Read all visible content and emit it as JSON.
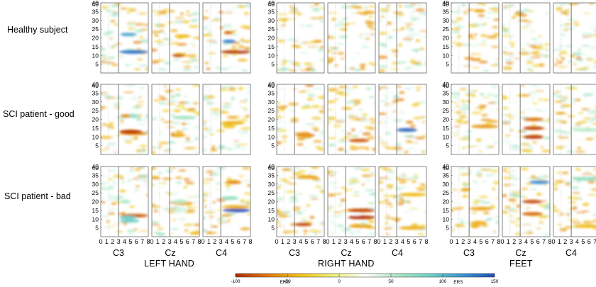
{
  "chart_data": {
    "type": "heatmap",
    "title": "",
    "rows": [
      "Healthy subject",
      "SCI patient - good",
      "SCI patient - bad"
    ],
    "groups": [
      {
        "name": "LEFT HAND",
        "channels": [
          "C3",
          "Cz",
          "C4"
        ]
      },
      {
        "name": "RIGHT HAND",
        "channels": [
          "C3",
          "Cz",
          "C4"
        ]
      },
      {
        "name": "FEET",
        "channels": [
          "C3",
          "Cz",
          "C4"
        ]
      }
    ],
    "x_ticks": [
      "0",
      "1",
      "2",
      "3",
      "4",
      "5",
      "6",
      "7",
      "8"
    ],
    "y_ticks": [
      "5",
      "10",
      "15",
      "20",
      "25",
      "30",
      "35",
      "40"
    ],
    "xlim": [
      0,
      8
    ],
    "ylim": [
      0,
      40
    ],
    "cue_time": 3,
    "colorbar": {
      "ticks": [
        "-100",
        "-50",
        "0",
        "50",
        "100",
        "150"
      ],
      "range": [
        -100,
        150
      ],
      "erd_label": "ERD",
      "ers_label": "ERS",
      "colors": [
        "#b22a00",
        "#e07a10",
        "#f1c21a",
        "#eef07a",
        "#ffffff",
        "#a9e6c2",
        "#6fd3c4",
        "#3a95d3",
        "#1f4fb8"
      ]
    },
    "features": [
      {
        "panel": [
          0,
          0
        ],
        "t0": 3.1,
        "t1": 8.0,
        "f": 12,
        "v": 135
      },
      {
        "panel": [
          0,
          0
        ],
        "t0": 3.3,
        "t1": 6.0,
        "f": 22,
        "v": 110
      },
      {
        "panel": [
          0,
          1
        ],
        "t0": 3.4,
        "t1": 5.4,
        "f": 10,
        "v": -80
      },
      {
        "panel": [
          0,
          1
        ],
        "t0": 3.8,
        "t1": 6.5,
        "f": 21,
        "v": -40
      },
      {
        "panel": [
          0,
          2
        ],
        "t0": 3.0,
        "t1": 8.0,
        "f": 12,
        "v": -95
      },
      {
        "panel": [
          0,
          2
        ],
        "t0": 3.3,
        "t1": 5.5,
        "f": 18,
        "v": 130
      },
      {
        "panel": [
          0,
          2
        ],
        "t0": 3.5,
        "t1": 5.0,
        "f": 23,
        "v": -70
      },
      {
        "panel": [
          1,
          0
        ],
        "t0": 3.3,
        "t1": 8.0,
        "f": 12,
        "v": -60
      },
      {
        "panel": [
          1,
          0
        ],
        "t0": 3.2,
        "t1": 7.0,
        "f": 13,
        "v": -85
      },
      {
        "panel": [
          1,
          0
        ],
        "t0": 3.8,
        "t1": 6.5,
        "f": 22,
        "v": 70
      },
      {
        "panel": [
          1,
          1
        ],
        "t0": 3.2,
        "t1": 5.5,
        "f": 11,
        "v": -75
      },
      {
        "panel": [
          1,
          1
        ],
        "t0": 3.5,
        "t1": 7.5,
        "f": 21,
        "v": 60
      },
      {
        "panel": [
          1,
          2
        ],
        "t0": 3.0,
        "t1": 7.0,
        "f": 18,
        "v": -45
      },
      {
        "panel": [
          2,
          0
        ],
        "t0": 3.2,
        "t1": 6.5,
        "f": 9,
        "v": 90
      },
      {
        "panel": [
          2,
          0
        ],
        "t0": 3.5,
        "t1": 8.0,
        "f": 12,
        "v": -80
      },
      {
        "panel": [
          2,
          1
        ],
        "t0": 3.6,
        "t1": 7.0,
        "f": 19,
        "v": -50
      },
      {
        "panel": [
          2,
          1
        ],
        "t0": 3.5,
        "t1": 6.0,
        "f": 15,
        "v": 40
      },
      {
        "panel": [
          2,
          2
        ],
        "t0": 3.3,
        "t1": 8.0,
        "f": 15,
        "v": 150
      },
      {
        "panel": [
          2,
          2
        ],
        "t0": 3.0,
        "t1": 6.0,
        "f": 22,
        "v": 70
      },
      {
        "panel": [
          2,
          2
        ],
        "t0": 3.8,
        "t1": 6.5,
        "f": 31,
        "v": -60
      },
      {
        "panel": [
          1,
          1,
          0
        ],
        "t0": 3.1,
        "t1": 6.5,
        "f": 11,
        "v": -60
      },
      {
        "panel": [
          1,
          1,
          1
        ],
        "t0": 3.5,
        "t1": 7.0,
        "f": 8,
        "v": -80
      },
      {
        "panel": [
          1,
          1,
          2
        ],
        "t0": 3.0,
        "t1": 6.5,
        "f": 14,
        "v": 140
      },
      {
        "panel": [
          1,
          2,
          0
        ],
        "t0": 3.1,
        "t1": 6.0,
        "f": 7,
        "v": -85
      },
      {
        "panel": [
          1,
          2,
          1
        ],
        "t0": 3.5,
        "t1": 7.5,
        "f": 6,
        "v": -50
      },
      {
        "panel": [
          1,
          2,
          2
        ],
        "t0": 3.3,
        "t1": 8.0,
        "f": 24,
        "v": -40
      },
      {
        "panel": [
          0,
          1,
          0
        ],
        "t0": 3.1,
        "t1": 6.8,
        "f": 13,
        "v": -95
      },
      {
        "panel": [
          0,
          1,
          0
        ],
        "t0": 3.3,
        "t1": 5.0,
        "f": 22,
        "v": -60
      },
      {
        "panel": [
          0,
          1,
          1
        ],
        "t0": 3.6,
        "t1": 5.4,
        "f": 11,
        "v": -45
      },
      {
        "panel": [
          0,
          1,
          2
        ],
        "t0": 3.3,
        "t1": 5.5,
        "f": 16,
        "v": -35
      },
      {
        "panel": [
          2,
          1,
          0
        ],
        "t0": 3.3,
        "t1": 8.0,
        "f": 16,
        "v": -55
      },
      {
        "panel": [
          2,
          1,
          1
        ],
        "t0": 3.5,
        "t1": 7.0,
        "f": 10,
        "v": -95
      },
      {
        "panel": [
          2,
          1,
          1
        ],
        "t0": 3.5,
        "t1": 7.0,
        "f": 15,
        "v": -90
      },
      {
        "panel": [
          2,
          1,
          1
        ],
        "t0": 3.5,
        "t1": 7.0,
        "f": 20,
        "v": -70
      },
      {
        "panel": [
          2,
          1,
          2
        ],
        "t0": 3.3,
        "t1": 8.0,
        "f": 14,
        "v": 50
      },
      {
        "panel": [
          2,
          2,
          0
        ],
        "t0": 3.0,
        "t1": 7.0,
        "f": 16,
        "v": -50
      },
      {
        "panel": [
          2,
          2,
          0
        ],
        "t0": 3.3,
        "t1": 6.0,
        "f": 8,
        "v": -45
      },
      {
        "panel": [
          2,
          2,
          1
        ],
        "t0": 3.3,
        "t1": 6.8,
        "f": 20,
        "v": -85
      },
      {
        "panel": [
          2,
          2,
          1
        ],
        "t0": 3.3,
        "t1": 6.8,
        "f": 13,
        "v": -75
      },
      {
        "panel": [
          2,
          2,
          1
        ],
        "t0": 4.5,
        "t1": 8.0,
        "f": 31,
        "v": 120
      },
      {
        "panel": [
          2,
          2,
          2
        ],
        "t0": 3.3,
        "t1": 8.0,
        "f": 33,
        "v": 70
      },
      {
        "panel": [
          2,
          2,
          2
        ],
        "t0": 3.3,
        "t1": 8.0,
        "f": 6,
        "v": -40
      },
      {
        "panel": [
          0,
          2,
          0
        ],
        "t0": 3.1,
        "t1": 6.0,
        "f": 11,
        "v": 90
      },
      {
        "panel": [
          0,
          2,
          0
        ],
        "t0": 3.3,
        "t1": 5.0,
        "f": 20,
        "v": 55
      },
      {
        "panel": [
          0,
          2,
          1
        ],
        "t0": 3.3,
        "t1": 6.0,
        "f": 20,
        "v": 50
      },
      {
        "panel": [
          0,
          2,
          2
        ],
        "t0": 3.3,
        "t1": 8.0,
        "f": 17,
        "v": -45
      },
      {
        "panel": [
          1,
          2,
          0
        ],
        "t0": 3.3,
        "t1": 7.0,
        "f": 34,
        "v": -50
      },
      {
        "panel": [
          1,
          2,
          1
        ],
        "t0": 3.4,
        "t1": 8.0,
        "f": 11,
        "v": -110
      },
      {
        "panel": [
          1,
          2,
          1
        ],
        "t0": 3.4,
        "t1": 8.0,
        "f": 15,
        "v": -90
      },
      {
        "panel": [
          1,
          2,
          2
        ],
        "t0": 3.3,
        "t1": 8.0,
        "f": 5,
        "v": -45
      }
    ]
  }
}
